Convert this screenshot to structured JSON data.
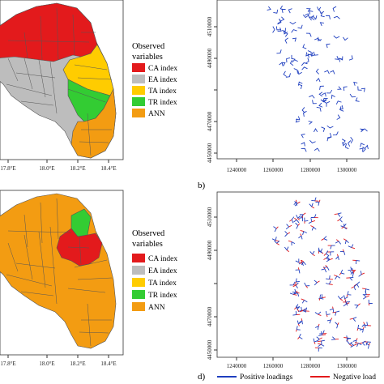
{
  "map_panels": [
    {
      "legend_title_line1": "Observed",
      "legend_title_line2": "variables",
      "legend": [
        {
          "label": "CA index",
          "color": "#e31a1c"
        },
        {
          "label": "EA index",
          "color": "#bdbdbd"
        },
        {
          "label": "TA index",
          "color": "#ffcc00"
        },
        {
          "label": "TR index",
          "color": "#33cc33"
        },
        {
          "label": "ANN",
          "color": "#f39c12"
        }
      ],
      "x_ticks": [
        "17.8°E",
        "18.0°E",
        "18.2°E",
        "18.4°E"
      ]
    },
    {
      "legend_title_line1": "Observed",
      "legend_title_line2": "variables",
      "legend": [
        {
          "label": "CA index",
          "color": "#e31a1c"
        },
        {
          "label": "EA index",
          "color": "#bdbdbd"
        },
        {
          "label": "TA index",
          "color": "#ffcc00"
        },
        {
          "label": "TR index",
          "color": "#33cc33"
        },
        {
          "label": "ANN",
          "color": "#f39c12"
        }
      ],
      "x_ticks": [
        "17.8°E",
        "18.0°E",
        "18.2°E",
        "18.4°E"
      ]
    }
  ],
  "chart_data": [
    {
      "type": "scatter",
      "panel_label": "b)",
      "x_ticks": [
        "1240000",
        "1260000",
        "1280000",
        "1300000"
      ],
      "y_ticks": [
        "4450000",
        "4470000",
        "4490000",
        "4510000"
      ],
      "xlim": [
        1235000,
        1310000
      ],
      "ylim": [
        4448000,
        4516000
      ],
      "marker_color": "#1f3fbf"
    },
    {
      "type": "scatter",
      "panel_label": "d)",
      "x_ticks": [
        "1240000",
        "1260000",
        "1280000",
        "1300000"
      ],
      "y_ticks": [
        "4450000",
        "4470000",
        "4490000",
        "4510000"
      ],
      "xlim": [
        1235000,
        1310000
      ],
      "ylim": [
        4448000,
        4516000
      ],
      "legend": [
        {
          "label": "Positive loadings",
          "color": "#1f3fbf"
        },
        {
          "label": "Negative load",
          "color": "#e31a1c"
        }
      ]
    }
  ]
}
